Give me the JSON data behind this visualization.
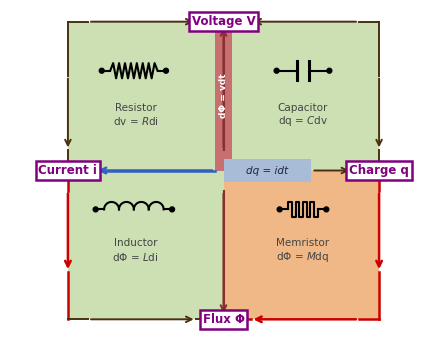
{
  "bg_color": "#ffffff",
  "green_bg": "#cce0b4",
  "orange_bg": "#f0b887",
  "pink_box_color": "#c87070",
  "blue_box_color": "#a8bcd8",
  "purple": "#800080",
  "dark_brown": "#4a3010",
  "blue_arr": "#3060c0",
  "red_arr": "#cc0000",
  "dark_red_arr": "#883030",
  "text_dark": "#444444",
  "label_voltage": "Voltage V",
  "label_current": "Current i",
  "label_charge": "Charge q",
  "label_flux": "Flux Φ",
  "label_dPhi_vdt": "dΦ = vdt",
  "label_dq_idt": "dq = idt"
}
